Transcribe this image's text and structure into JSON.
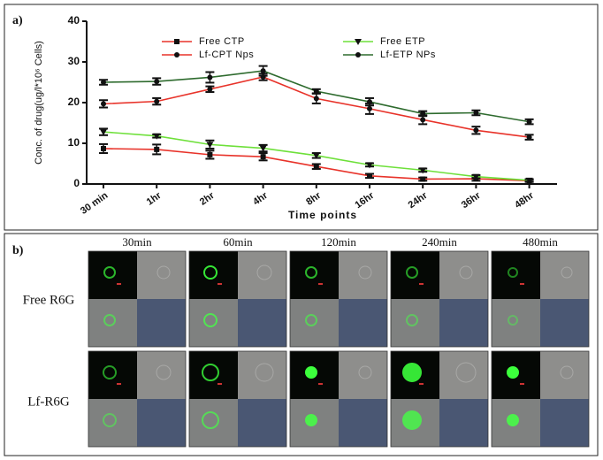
{
  "chart_data": {
    "type": "line",
    "title": "a)",
    "x_label": "Time points",
    "y_label": "Conc. of drug(ug/l*10⁶ Cells)",
    "categories": [
      "30 min",
      "1hr",
      "2hr",
      "4hr",
      "8hr",
      "16hr",
      "24hr",
      "36hr",
      "48hr"
    ],
    "ylim": [
      0,
      40
    ],
    "yticks": [
      0,
      10,
      20,
      30,
      40
    ],
    "marker_color": "#111111",
    "series": [
      {
        "name": "Free CTP",
        "color": "#e8332a",
        "marker": "square",
        "values": [
          8.7,
          8.5,
          7.2,
          6.7,
          4.3,
          2.0,
          1.2,
          1.3,
          0.8
        ],
        "errors": [
          1.1,
          1.2,
          1.0,
          0.9,
          0.6,
          0.5,
          0.4,
          0.5,
          0.3
        ]
      },
      {
        "name": "Lf-CPT Nps",
        "color": "#e8332a",
        "marker": "circle",
        "values": [
          19.7,
          20.3,
          23.3,
          26.3,
          21.0,
          18.5,
          15.8,
          13.2,
          11.5
        ],
        "errors": [
          0.9,
          0.8,
          0.7,
          0.8,
          1.2,
          1.3,
          1.1,
          0.9,
          0.6
        ]
      },
      {
        "name": "Free ETP",
        "color": "#6ee03a",
        "marker": "triangle",
        "values": [
          12.8,
          11.8,
          9.7,
          8.8,
          7.0,
          4.7,
          3.4,
          1.8,
          0.9
        ],
        "errors": [
          0.8,
          0.4,
          1.0,
          0.8,
          0.6,
          0.4,
          0.4,
          0.4,
          0.3
        ]
      },
      {
        "name": "Lf-ETP NPs",
        "color": "#2e6b2e",
        "marker": "circle",
        "values": [
          25.0,
          25.2,
          26.2,
          27.8,
          22.8,
          20.2,
          17.3,
          17.5,
          15.3
        ],
        "errors": [
          0.6,
          0.8,
          1.3,
          1.2,
          0.5,
          0.9,
          0.6,
          0.6,
          0.6
        ]
      }
    ]
  },
  "panel_b": {
    "label": "b)",
    "columns": [
      "30min",
      "60min",
      "120min",
      "240min",
      "480min"
    ],
    "rows": [
      "Free R6G",
      "Lf-R6G"
    ]
  }
}
